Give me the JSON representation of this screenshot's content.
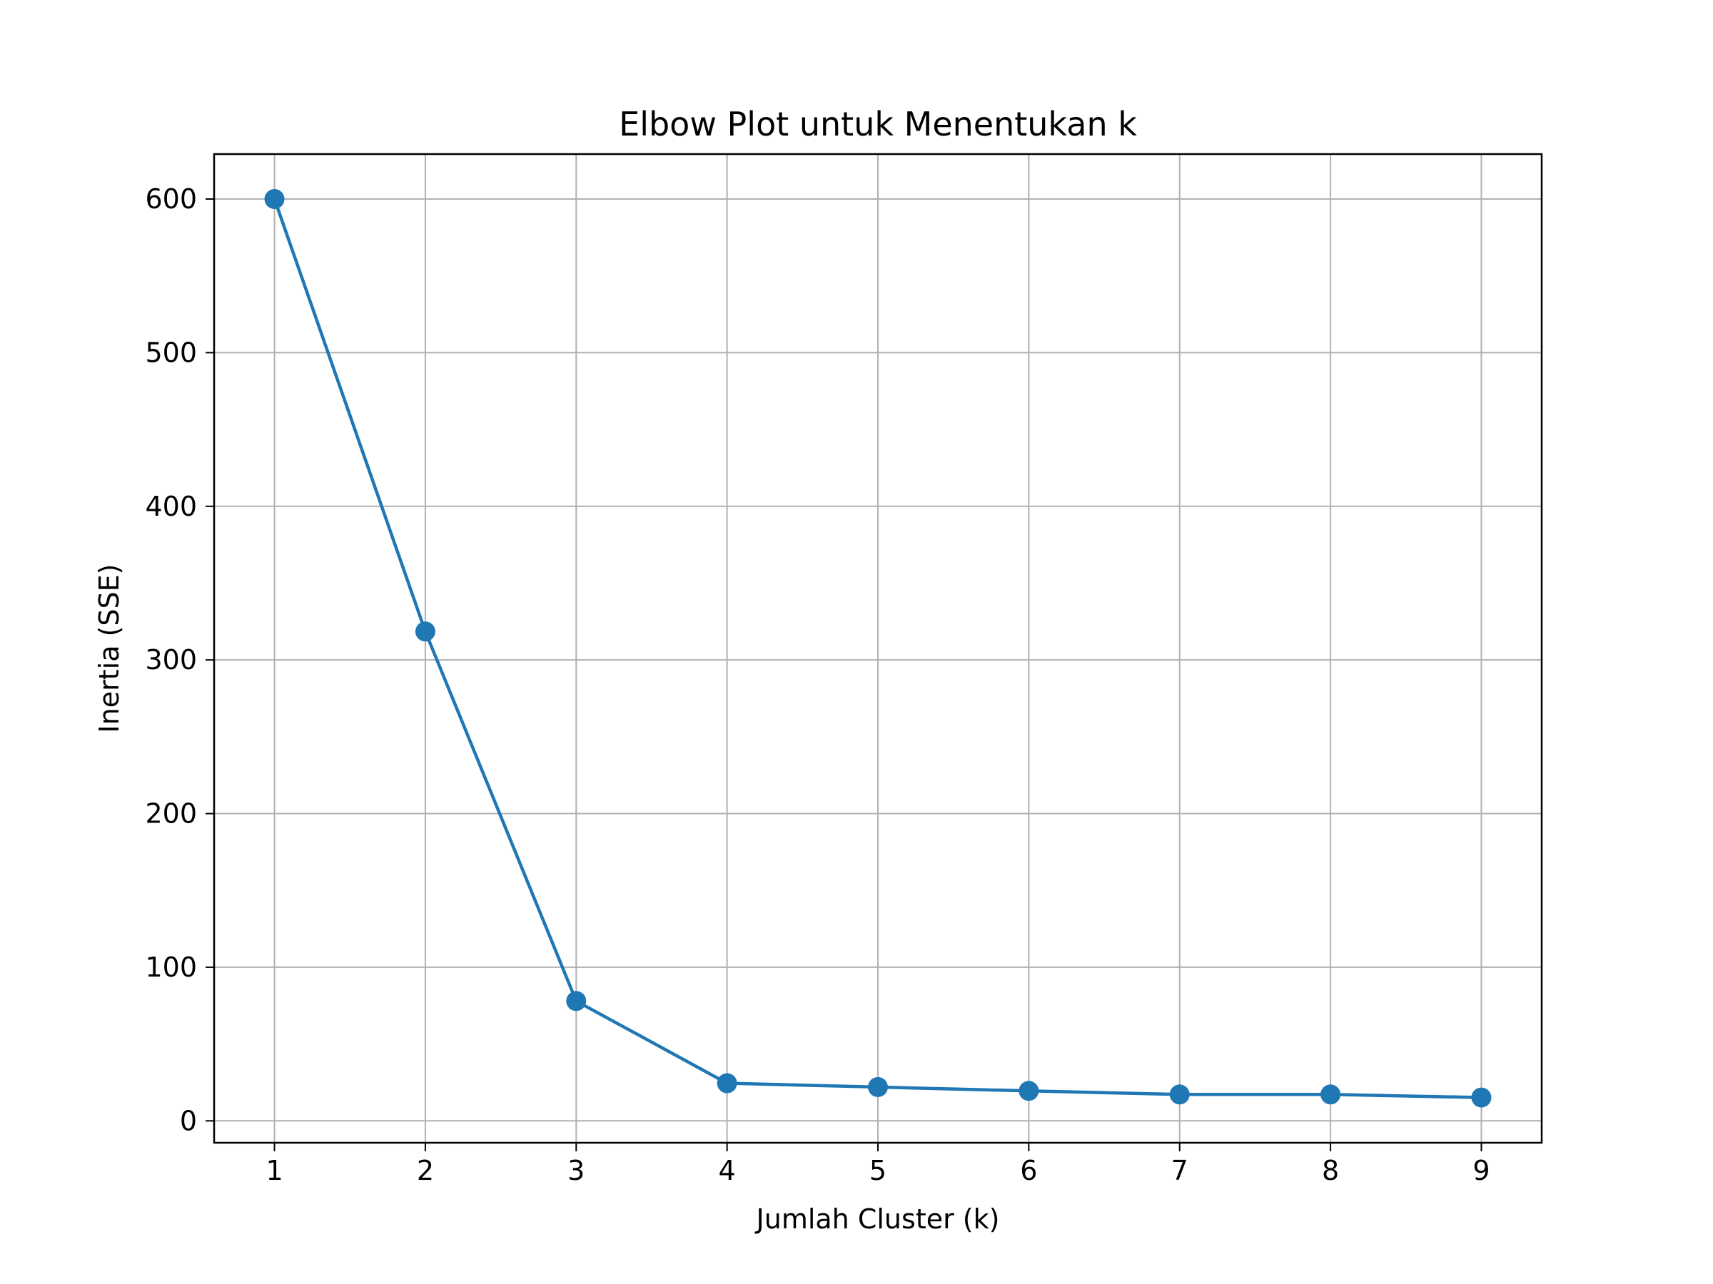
{
  "chart_data": {
    "type": "line",
    "title": "Elbow Plot untuk Menentukan k",
    "xlabel": "Jumlah Cluster (k)",
    "ylabel": "Inertia (SSE)",
    "x": [
      1,
      2,
      3,
      4,
      5,
      6,
      7,
      8,
      9
    ],
    "series": [
      {
        "values": [
          600,
          318.5,
          78,
          24.5,
          22,
          19.5,
          17.2,
          17.2,
          15.2
        ],
        "color": "#1f77b4",
        "marker": "circle"
      }
    ],
    "xticks": [
      "1",
      "2",
      "3",
      "4",
      "5",
      "6",
      "7",
      "8",
      "9"
    ],
    "yticks": [
      "0",
      "100",
      "200",
      "300",
      "400",
      "500",
      "600"
    ],
    "xlim": [
      0.6,
      9.4
    ],
    "ylim": [
      -14.25,
      629.25
    ],
    "grid": true,
    "grid_color": "#b0b0b0",
    "legend": "none"
  }
}
